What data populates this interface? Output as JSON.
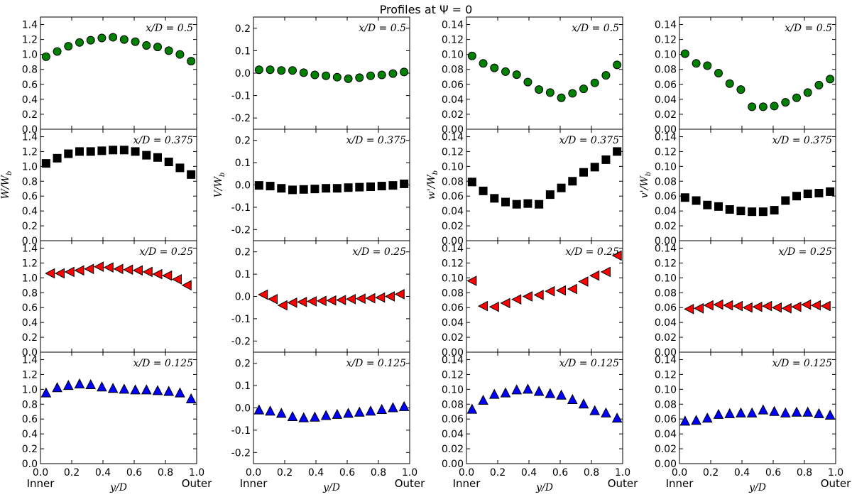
{
  "suptitle": "Profiles at Ψ =    0",
  "colors": {
    "green": "#008000",
    "black": "#000000",
    "red": "#ff0000",
    "blue": "#0000ff"
  },
  "chart_data": {
    "type": "scatter",
    "x": [
      0.0625,
      0.125,
      0.1875,
      0.25,
      0.3125,
      0.375,
      0.4375,
      0.5,
      0.5625,
      0.625,
      0.6875,
      0.75,
      0.8125,
      0.875,
      0.9375
    ],
    "xlim": [
      0.0,
      1.0
    ],
    "xticks": [
      "0.0",
      "0.2",
      "0.4",
      "0.6",
      "0.8",
      "1.0"
    ],
    "xlabel": "y/D",
    "x_end_labels": [
      "Inner",
      "Outer"
    ],
    "grid": false,
    "rows": [
      {
        "label": "x/D = 0.5",
        "marker": "circle",
        "color": "#008000"
      },
      {
        "label": "x/D = 0.375",
        "marker": "square",
        "color": "#000000"
      },
      {
        "label": "x/D = 0.25",
        "marker": "triangle-left",
        "color": "#ff0000"
      },
      {
        "label": "x/D = 0.125",
        "marker": "triangle-up",
        "color": "#0000ff"
      }
    ],
    "columns": [
      {
        "ylabel": "W/W_b",
        "ylim": [
          0.0,
          1.5
        ],
        "yticks": [
          "0.0",
          "0.2",
          "0.4",
          "0.6",
          "0.8",
          "1.0",
          "1.2",
          "1.4"
        ],
        "series": [
          [
            0.97,
            1.04,
            1.11,
            1.16,
            1.19,
            1.22,
            1.23,
            1.2,
            1.17,
            1.12,
            1.1,
            1.05,
            1.0,
            0.91
          ],
          [
            1.04,
            1.11,
            1.17,
            1.2,
            1.2,
            1.21,
            1.22,
            1.22,
            1.2,
            1.15,
            1.12,
            1.06,
            0.98,
            0.89
          ],
          [
            1.06,
            1.06,
            1.08,
            1.1,
            1.12,
            1.15,
            1.14,
            1.12,
            1.11,
            1.1,
            1.08,
            1.05,
            1.03,
            0.98,
            0.9
          ],
          [
            0.95,
            1.02,
            1.05,
            1.07,
            1.06,
            1.03,
            1.01,
            1.0,
            0.99,
            0.99,
            0.98,
            0.97,
            0.95,
            0.87
          ]
        ]
      },
      {
        "ylabel": "V/W_b",
        "ylim": [
          -0.25,
          0.25
        ],
        "yticks": [
          "-0.2",
          "-0.1",
          "0.0",
          "0.1",
          "0.2"
        ],
        "series": [
          [
            0.015,
            0.015,
            0.012,
            0.012,
            0.002,
            -0.008,
            -0.012,
            -0.018,
            -0.025,
            -0.02,
            -0.012,
            -0.008,
            -0.002,
            0.005
          ],
          [
            -0.002,
            -0.005,
            -0.015,
            -0.022,
            -0.02,
            -0.018,
            -0.015,
            -0.015,
            -0.012,
            -0.01,
            -0.008,
            -0.005,
            -0.002,
            0.005
          ],
          [
            0.008,
            -0.012,
            -0.04,
            -0.028,
            -0.025,
            -0.022,
            -0.02,
            -0.018,
            -0.016,
            -0.012,
            -0.01,
            -0.008,
            -0.005,
            0.0,
            0.01
          ],
          [
            -0.01,
            -0.015,
            -0.025,
            -0.04,
            -0.045,
            -0.042,
            -0.035,
            -0.03,
            -0.025,
            -0.02,
            -0.015,
            -0.008,
            0.0,
            0.005
          ]
        ]
      },
      {
        "ylabel": "w'/W_b",
        "ylim": [
          0.0,
          0.15
        ],
        "yticks": [
          "0.00",
          "0.02",
          "0.04",
          "0.06",
          "0.08",
          "0.10",
          "0.12",
          "0.14"
        ],
        "series": [
          [
            0.098,
            0.088,
            0.082,
            0.077,
            0.073,
            0.063,
            0.053,
            0.049,
            0.042,
            0.048,
            0.054,
            0.062,
            0.072,
            0.086
          ],
          [
            0.079,
            0.067,
            0.057,
            0.052,
            0.049,
            0.05,
            0.049,
            0.062,
            0.071,
            0.08,
            0.092,
            0.099,
            0.109,
            0.12
          ],
          [
            0.096,
            0.062,
            0.061,
            0.066,
            0.071,
            0.075,
            0.077,
            0.082,
            0.083,
            0.085,
            0.095,
            0.103,
            0.108,
            0.13
          ],
          [
            0.073,
            0.085,
            0.093,
            0.095,
            0.099,
            0.1,
            0.097,
            0.094,
            0.092,
            0.086,
            0.08,
            0.071,
            0.068,
            0.061
          ]
        ]
      },
      {
        "ylabel": "v'/W_b",
        "ylim": [
          0.0,
          0.15
        ],
        "yticks": [
          "0.00",
          "0.02",
          "0.04",
          "0.06",
          "0.08",
          "0.10",
          "0.12",
          "0.14"
        ],
        "series": [
          [
            0.101,
            0.088,
            0.085,
            0.075,
            0.061,
            0.053,
            0.03,
            0.03,
            0.031,
            0.036,
            0.042,
            0.049,
            0.059,
            0.067
          ],
          [
            0.058,
            0.054,
            0.048,
            0.046,
            0.042,
            0.04,
            0.039,
            0.039,
            0.041,
            0.054,
            0.06,
            0.063,
            0.064,
            0.066
          ],
          [
            0.058,
            0.059,
            0.063,
            0.064,
            0.063,
            0.062,
            0.06,
            0.061,
            0.062,
            0.06,
            0.059,
            0.061,
            0.064,
            0.063,
            0.062
          ],
          [
            0.057,
            0.058,
            0.061,
            0.066,
            0.067,
            0.068,
            0.068,
            0.072,
            0.07,
            0.068,
            0.069,
            0.069,
            0.067,
            0.065
          ]
        ]
      }
    ]
  }
}
